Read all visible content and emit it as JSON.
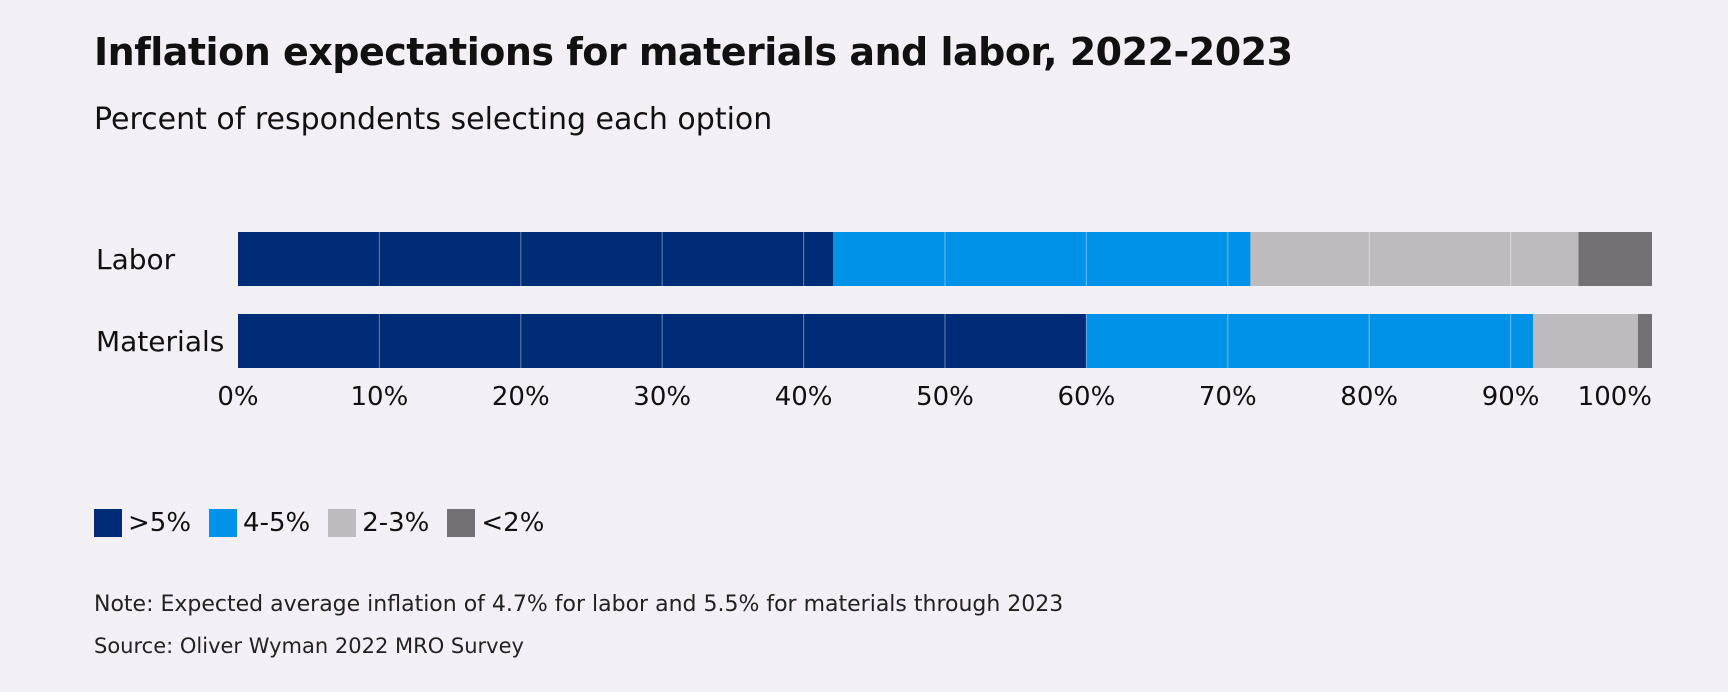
{
  "title": "Inflation expectations for materials and labor, 2022-2023",
  "subtitle": "Percent of respondents selecting each option",
  "note": "Note: Expected average inflation of 4.7% for labor and 5.5% for materials through 2023",
  "source": "Source: Oliver Wyman 2022 MRO Survey",
  "colors": {
    "background": "#f2f0f4",
    "gt5": "#002c77",
    "4to5": "#0092e6",
    "2to3": "#bdbbbe",
    "lt2": "#737174"
  },
  "chart_data": {
    "type": "bar",
    "orientation": "horizontal",
    "stacked": true,
    "categories": [
      "Labor",
      "Materials"
    ],
    "series": [
      {
        "name": ">5%",
        "color": "#002c77",
        "values": [
          42.1,
          60.0
        ]
      },
      {
        "name": "4-5%",
        "color": "#0092e6",
        "values": [
          29.5,
          31.6
        ]
      },
      {
        "name": "2-3%",
        "color": "#bdbbbe",
        "values": [
          23.2,
          7.4
        ]
      },
      {
        "name": "<2%",
        "color": "#737174",
        "values": [
          5.2,
          1.0
        ]
      }
    ],
    "xlim": [
      0,
      100
    ],
    "x_ticks": [
      "0%",
      "10%",
      "20%",
      "30%",
      "40%",
      "50%",
      "60%",
      "70%",
      "80%",
      "90%",
      "100%"
    ],
    "grid": true,
    "legend_position": "bottom-left",
    "title": "Inflation expectations for materials and labor, 2022-2023",
    "subtitle": "Percent of respondents selecting each option",
    "xlabel": "",
    "ylabel": ""
  }
}
